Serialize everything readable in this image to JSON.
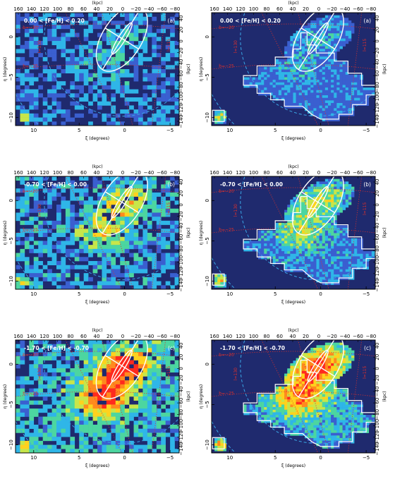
{
  "colors": {
    "background": "#1f2a6e",
    "density_scale": [
      "#3a5fd0",
      "#2fb6e8",
      "#4cd6a0",
      "#c7e64a",
      "#ffd21e",
      "#ff8a1e",
      "#ff2a1e"
    ],
    "dotted_grid": "#e0302a",
    "dashed_circles": "#3aa7e6",
    "outline": "#ffffff"
  },
  "chart_data": [
    {
      "panel": "(a)",
      "column": "left",
      "metallicity_label": "0.00 < [Fe/H] < 0.20",
      "survey_footprint": false,
      "density_level": 0.25
    },
    {
      "panel": "(a)",
      "column": "right",
      "metallicity_label": "0.00 < [Fe/H] < 0.20",
      "survey_footprint": true,
      "density_level": 0.18
    },
    {
      "panel": "(b)",
      "column": "left",
      "metallicity_label": "-0.70 < [Fe/H] < 0.00",
      "survey_footprint": false,
      "density_level": 0.55
    },
    {
      "panel": "(b)",
      "column": "right",
      "metallicity_label": "-0.70 < [Fe/H] < 0.00",
      "survey_footprint": true,
      "density_level": 0.45
    },
    {
      "panel": "(c)",
      "column": "left",
      "metallicity_label": "-1.70 < [Fe/H] < -0.70",
      "survey_footprint": false,
      "density_level": 0.9
    },
    {
      "panel": "(c)",
      "column": "right",
      "metallicity_label": "-1.70 < [Fe/H] < -0.70",
      "survey_footprint": true,
      "density_level": 0.8
    }
  ],
  "axes": {
    "xlabel": "ξ (degrees)",
    "ylabel": "η (degrees)",
    "top_label": "(kpc)",
    "right_label": "(kpc)",
    "xticks": [
      "10",
      "5",
      "0",
      "−5"
    ],
    "yticks": [
      "0",
      "−5",
      "−10"
    ],
    "top_ticks": [
      "160",
      "140",
      "120",
      "100",
      "80",
      "60",
      "40",
      "20",
      "0",
      "−20",
      "−40",
      "−60",
      "−80"
    ],
    "right_ticks": [
      "40",
      "20",
      "0",
      "−20",
      "−40",
      "−60",
      "−80",
      "−100",
      "−120",
      "−140"
    ]
  },
  "grid_labels": {
    "l130": "l=130",
    "l115": "l=115",
    "b20": "b=−20",
    "b25": "b=−25"
  }
}
